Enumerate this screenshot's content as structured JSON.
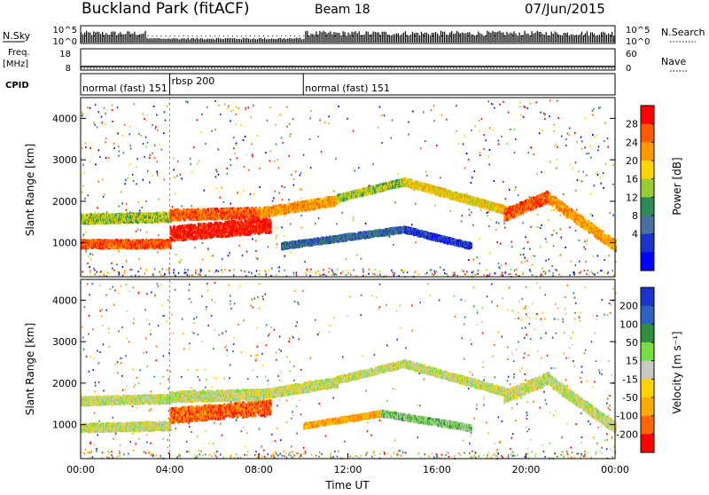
{
  "header": {
    "station": "Buckland Park (fitACF)",
    "beam": "Beam 18",
    "date": "07/Jun/2015"
  },
  "noise_panel": {
    "left_label": "N.Sky",
    "right_label": "N.Search",
    "left_ticks": [
      "10^5",
      "10^0"
    ],
    "right_ticks": [
      "10^5",
      "10^0"
    ]
  },
  "freq_panel": {
    "left_label_line1": "Freq.",
    "left_label_line2": "[MHz]",
    "right_label": "Nave",
    "left_ticks": [
      "18",
      "8"
    ],
    "right_ticks": [
      "60",
      "0"
    ]
  },
  "cpid": {
    "label": "CPID",
    "modes": [
      {
        "name": "normal (fast) 151",
        "start_hour": 0,
        "end_hour": 4
      },
      {
        "name": "rbsp 200",
        "start_hour": 4,
        "end_hour": 10
      },
      {
        "name": "normal (fast) 151",
        "start_hour": 10,
        "end_hour": 24
      }
    ]
  },
  "chart_data": [
    {
      "type": "heatmap",
      "name": "power",
      "ylabel": "Slant Range [km]",
      "x_range_hours": [
        0,
        24
      ],
      "ylim": [
        180,
        4500
      ],
      "yticks": [
        "1000",
        "2000",
        "3000",
        "4000"
      ],
      "colorbar": {
        "label": "Power [dB]",
        "ticks": [
          "28",
          "24",
          "20",
          "16",
          "12",
          "8",
          "4"
        ],
        "colors": [
          "#ff0000",
          "#ff5a00",
          "#ff9900",
          "#ffd400",
          "#99cc33",
          "#2e8b57",
          "#4a6fa0",
          "#1a33cc",
          "#0000ff"
        ]
      },
      "bands": [
        {
          "t0": 0.0,
          "r0": 1600,
          "t1": 4.0,
          "r1": 1650,
          "w": 220,
          "c": 4
        },
        {
          "t0": 0.0,
          "r0": 1000,
          "t1": 4.0,
          "r1": 1000,
          "w": 200,
          "c": 1
        },
        {
          "t0": 4.0,
          "r0": 1700,
          "t1": 8.0,
          "r1": 1750,
          "w": 250,
          "c": 1
        },
        {
          "t0": 4.0,
          "r0": 1250,
          "t1": 8.5,
          "r1": 1450,
          "w": 350,
          "c": 0
        },
        {
          "t0": 8.0,
          "r0": 1750,
          "t1": 11.5,
          "r1": 2050,
          "w": 220,
          "c": 2
        },
        {
          "t0": 11.5,
          "r0": 2100,
          "t1": 14.5,
          "r1": 2500,
          "w": 160,
          "c": 4
        },
        {
          "t0": 14.5,
          "r0": 2500,
          "t1": 19.5,
          "r1": 1750,
          "w": 180,
          "c": 3
        },
        {
          "t0": 19.0,
          "r0": 1700,
          "t1": 21.0,
          "r1": 2150,
          "w": 280,
          "c": 1
        },
        {
          "t0": 21.0,
          "r0": 2100,
          "t1": 24.0,
          "r1": 950,
          "w": 250,
          "c": 2
        },
        {
          "t0": 9.0,
          "r0": 950,
          "t1": 14.5,
          "r1": 1350,
          "w": 140,
          "c": 6
        },
        {
          "t0": 14.5,
          "r0": 1350,
          "t1": 17.5,
          "r1": 950,
          "w": 140,
          "c": 7
        }
      ]
    },
    {
      "type": "heatmap",
      "name": "velocity",
      "ylabel": "Slant Range [km]",
      "xlabel": "Time UT",
      "x_range_hours": [
        0,
        24
      ],
      "ylim": [
        180,
        4500
      ],
      "yticks": [
        "1000",
        "2000",
        "3000",
        "4000"
      ],
      "xticks": [
        "00:00",
        "04:00",
        "08:00",
        "12:00",
        "16:00",
        "20:00",
        "00:00"
      ],
      "colorbar": {
        "label": "Velocity [m s⁻¹]",
        "ticks": [
          "200",
          "100",
          "50",
          "15",
          "-15",
          "-50",
          "-100",
          "-200"
        ],
        "colors": [
          "#1a33cc",
          "#3060c0",
          "#2f8f3f",
          "#77dd44",
          "#c8c8c0",
          "#ffd400",
          "#ffaa00",
          "#ff6600",
          "#ff0000"
        ]
      },
      "bands": [
        {
          "t0": 0.0,
          "r0": 950,
          "t1": 4.0,
          "r1": 1000,
          "w": 200,
          "c": 4
        },
        {
          "t0": 0.0,
          "r0": 1600,
          "t1": 4.0,
          "r1": 1650,
          "w": 200,
          "c": 4
        },
        {
          "t0": 4.0,
          "r0": 1250,
          "t1": 8.5,
          "r1": 1450,
          "w": 350,
          "c": 7
        },
        {
          "t0": 4.0,
          "r0": 1700,
          "t1": 8.0,
          "r1": 1750,
          "w": 250,
          "c": 4
        },
        {
          "t0": 8.0,
          "r0": 1750,
          "t1": 11.5,
          "r1": 2050,
          "w": 220,
          "c": 4
        },
        {
          "t0": 11.5,
          "r0": 2100,
          "t1": 14.5,
          "r1": 2500,
          "w": 160,
          "c": 4
        },
        {
          "t0": 14.5,
          "r0": 2500,
          "t1": 19.5,
          "r1": 1750,
          "w": 180,
          "c": 4
        },
        {
          "t0": 19.0,
          "r0": 1700,
          "t1": 21.0,
          "r1": 2150,
          "w": 280,
          "c": 4
        },
        {
          "t0": 21.0,
          "r0": 2100,
          "t1": 24.0,
          "r1": 950,
          "w": 250,
          "c": 4
        },
        {
          "t0": 10.0,
          "r0": 1000,
          "t1": 13.5,
          "r1": 1300,
          "w": 120,
          "c": 6
        },
        {
          "t0": 13.5,
          "r0": 1300,
          "t1": 17.5,
          "r1": 950,
          "w": 140,
          "c": 3
        }
      ]
    }
  ]
}
